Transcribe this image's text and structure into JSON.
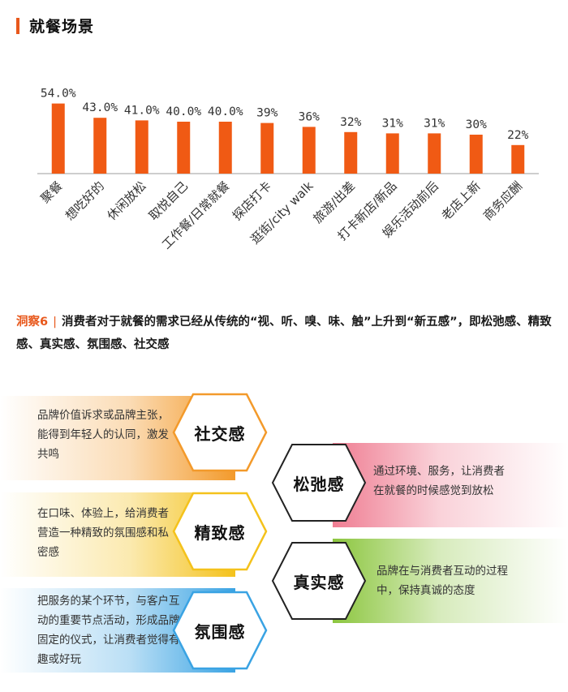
{
  "section": {
    "title": "就餐场景"
  },
  "chart_data": {
    "type": "bar",
    "categories": [
      "聚餐",
      "想吃好的",
      "休闲放松",
      "取悦自己",
      "工作餐/日常就餐",
      "探店打卡",
      "逛街/city walk",
      "旅游/出差",
      "打卡新店/新品",
      "娱乐活动前后",
      "老店上新",
      "商务应酬"
    ],
    "values": [
      54.0,
      43.0,
      41.0,
      40.0,
      40.0,
      39,
      36,
      32,
      31,
      31,
      30,
      22
    ],
    "value_labels": [
      "54.0%",
      "43.0%",
      "41.0%",
      "40.0%",
      "40.0%",
      "39%",
      "36%",
      "32%",
      "31%",
      "31%",
      "30%",
      "22%"
    ],
    "ylim": [
      0,
      60
    ],
    "grid": false,
    "colors": {
      "bar": "#f05a14",
      "axis": "#bdbdbd"
    }
  },
  "insight": {
    "tag": "洞察6",
    "text": "消费者对于就餐的需求已经从传统的“视、听、嗅、味、触”上升到“新五感”，即松弛感、精致感、真实感、氛围感、社交感"
  },
  "senses": [
    {
      "id": "social",
      "label": "社交感",
      "desc": "品牌价值诉求或品牌主张，能得到年轻人的认同，激发共鸣",
      "color": "#f39a2b"
    },
    {
      "id": "relax",
      "label": "松弛感",
      "desc": "通过环境、服务，让消费者在就餐的时候感觉到放松",
      "color": "#ef7d92"
    },
    {
      "id": "refined",
      "label": "精致感",
      "desc": "在口味、体验上，给消费者营造一种精致的氛围感和私密感",
      "color": "#f4c21c"
    },
    {
      "id": "real",
      "label": "真实感",
      "desc": "品牌在与消费者互动的过程中，保持真诚的态度",
      "color": "#8cc63f"
    },
    {
      "id": "ambience",
      "label": "氛围感",
      "desc": "把服务的某个环节，与客户互动的重要节点活动，形成品牌固定的仪式，让消费者觉得有趣或好玩",
      "color": "#3aa3e3"
    }
  ]
}
